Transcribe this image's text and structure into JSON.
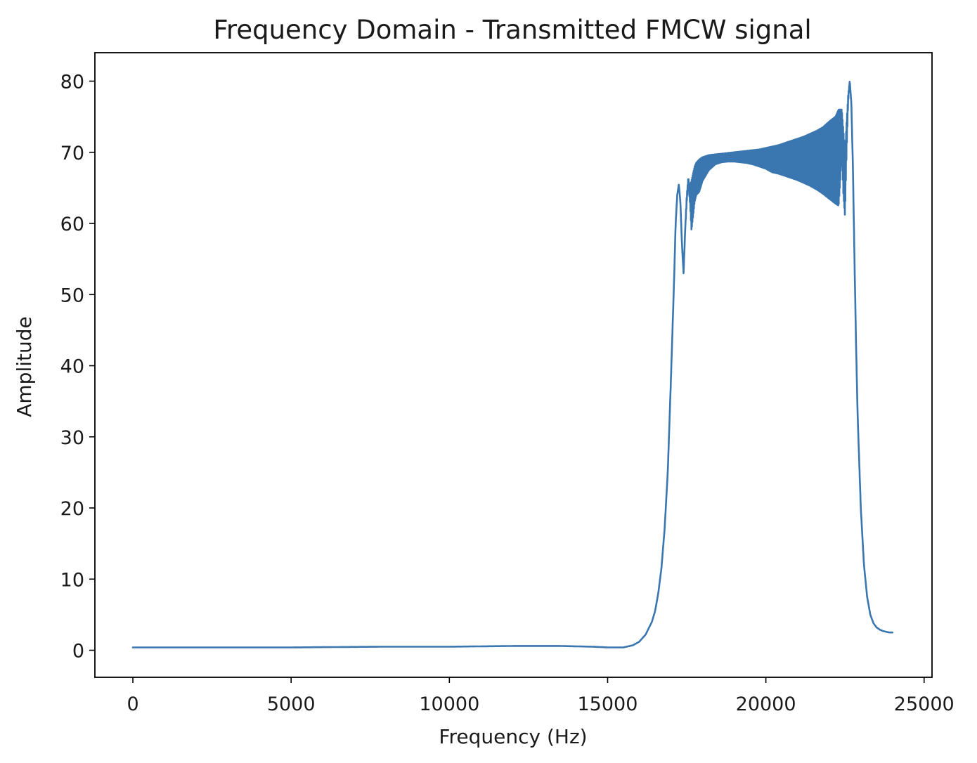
{
  "chart_data": {
    "type": "line",
    "title": "Frequency Domain - Transmitted FMCW signal",
    "xlabel": "Frequency (Hz)",
    "ylabel": "Amplitude",
    "xlim": [
      -1200,
      25250
    ],
    "ylim": [
      -3.8,
      84
    ],
    "xticks": [
      0,
      5000,
      10000,
      15000,
      20000,
      25000
    ],
    "xtick_labels": [
      "0",
      "5000",
      "10000",
      "15000",
      "20000",
      "25000"
    ],
    "yticks": [
      0,
      10,
      20,
      30,
      40,
      50,
      60,
      70,
      80
    ],
    "ytick_labels": [
      "0",
      "10",
      "20",
      "30",
      "40",
      "50",
      "60",
      "70",
      "80"
    ],
    "grid": false,
    "color": "#3a76af",
    "series": [
      {
        "x": [
          0,
          2000,
          5000,
          8000,
          10000,
          12000,
          13500,
          14500,
          15000,
          15500,
          15800,
          16000,
          16200,
          16400,
          16500,
          16600,
          16700,
          16800,
          16900,
          17000,
          17100,
          17150,
          17200,
          17250,
          17300,
          17350,
          17400,
          17450,
          17500,
          17550,
          17600,
          17650,
          17700,
          17750,
          17800,
          17900,
          18000,
          18200,
          18400,
          18600,
          18800,
          19000,
          19200,
          19400,
          19600,
          19800,
          20000,
          20200,
          20400,
          20600,
          20800,
          21000,
          21200,
          21400,
          21600,
          21800,
          22000,
          22200,
          22300,
          22350,
          22400,
          22450,
          22500,
          22550,
          22600,
          22650,
          22700,
          22750,
          22800,
          22850,
          22900,
          23000,
          23100,
          23200,
          23300,
          23400,
          23500,
          23600,
          23700,
          23800,
          23900,
          24000
        ],
        "y_low": [
          0.4,
          0.4,
          0.4,
          0.5,
          0.5,
          0.6,
          0.6,
          0.5,
          0.4,
          0.4,
          0.7,
          1.2,
          2.2,
          4.0,
          5.5,
          8.0,
          11.5,
          17.0,
          25.0,
          38.0,
          52.0,
          60.0,
          64.0,
          65.5,
          63.0,
          57.0,
          53.0,
          59.0,
          63.0,
          65.5,
          63.0,
          59.0,
          61.0,
          63.0,
          64.0,
          64.5,
          66.0,
          67.5,
          68.3,
          68.6,
          68.7,
          68.7,
          68.6,
          68.5,
          68.3,
          68.0,
          67.7,
          67.2,
          67.0,
          66.7,
          66.4,
          66.1,
          65.7,
          65.3,
          64.8,
          64.2,
          63.5,
          62.8,
          62.5,
          66.0,
          70.0,
          64.0,
          61.0,
          70.0,
          77.0,
          80.0,
          77.0,
          68.0,
          55.0,
          43.0,
          33.0,
          20.0,
          12.0,
          7.5,
          5.0,
          3.8,
          3.2,
          2.9,
          2.7,
          2.6,
          2.5,
          2.5
        ],
        "y_high": [
          0.4,
          0.4,
          0.4,
          0.5,
          0.5,
          0.6,
          0.6,
          0.5,
          0.4,
          0.4,
          0.7,
          1.2,
          2.2,
          4.0,
          5.5,
          8.0,
          11.5,
          17.0,
          25.0,
          38.0,
          52.0,
          60.0,
          64.0,
          65.5,
          63.0,
          57.0,
          53.0,
          59.0,
          64.0,
          66.5,
          65.0,
          66.0,
          67.0,
          68.0,
          68.5,
          69.0,
          69.3,
          69.6,
          69.7,
          69.8,
          69.9,
          70.0,
          70.1,
          70.2,
          70.3,
          70.4,
          70.6,
          70.8,
          71.0,
          71.3,
          71.6,
          71.9,
          72.2,
          72.6,
          73.0,
          73.5,
          74.3,
          75.0,
          76.0,
          76.0,
          76.0,
          73.0,
          70.0,
          74.0,
          78.0,
          80.0,
          77.0,
          68.0,
          55.0,
          43.0,
          33.0,
          20.0,
          12.0,
          7.5,
          5.0,
          3.8,
          3.2,
          2.9,
          2.7,
          2.6,
          2.5,
          2.5
        ]
      }
    ]
  }
}
